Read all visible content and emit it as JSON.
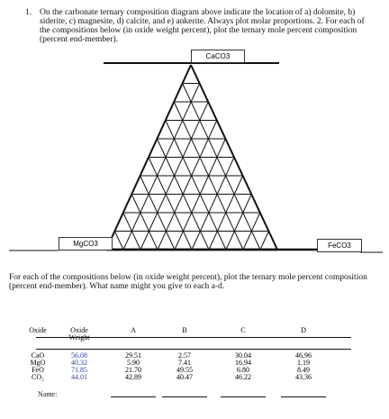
{
  "question": {
    "number": "1.",
    "text": "On the carbonate ternary composition diagram above indicate the location of a) dolomite, b) siderite, c) magnesite, d) calcite, and e) ankerite. Always plot molar proportions. 2. For each of the compositions below (in oxide weight percent), plot the ternary mole percent composition (percent end-member)."
  },
  "diagram": {
    "top": "CaCO3",
    "left": "MgCO3",
    "right": "FeCO3"
  },
  "instruction": "For each of the compositions below (in oxide weight percent), plot the ternary mole percent composition (percent end-member). What name might you give to each a-d.",
  "table": {
    "header": [
      "Oxide",
      "Oxide Weight",
      "A",
      "B",
      "C",
      "D"
    ],
    "rows": [
      [
        "CaO",
        "56.08",
        "29.51",
        "2.57",
        "30.04",
        "46.96"
      ],
      [
        "MgO",
        "40.32",
        "5.90",
        "7.41",
        "16.94",
        "1.19"
      ],
      [
        "FeO",
        "71.85",
        "21.70",
        "49.55",
        "6.80",
        "8.49"
      ],
      [
        "CO₂",
        "44.01",
        "42.89",
        "40.47",
        "46.22",
        "43.36"
      ]
    ],
    "footer": "Name:"
  }
}
